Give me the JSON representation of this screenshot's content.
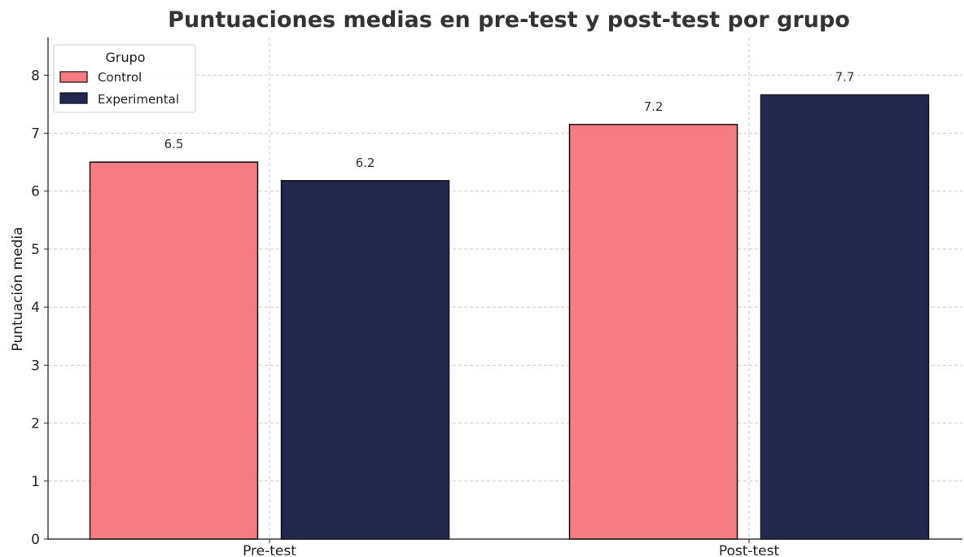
{
  "chart_data": {
    "type": "bar",
    "title": "Puntuaciones medias en pre-test y post-test por grupo",
    "xlabel": "",
    "ylabel": "Puntuación media",
    "categories": [
      "Pre-test",
      "Post-test"
    ],
    "series": [
      {
        "name": "Control",
        "color": "#f47c82",
        "values": [
          6.5,
          7.15
        ],
        "labels": [
          "6.5",
          "7.2"
        ]
      },
      {
        "name": "Experimental",
        "color": "#21284f",
        "values": [
          6.18,
          7.66
        ],
        "labels": [
          "6.2",
          "7.7"
        ]
      }
    ],
    "ylim": [
      0,
      8.65
    ],
    "yticks": [
      0,
      1,
      2,
      3,
      4,
      5,
      6,
      7,
      8
    ],
    "grid": true,
    "legend": {
      "title": "Grupo",
      "position": "top-left"
    }
  }
}
